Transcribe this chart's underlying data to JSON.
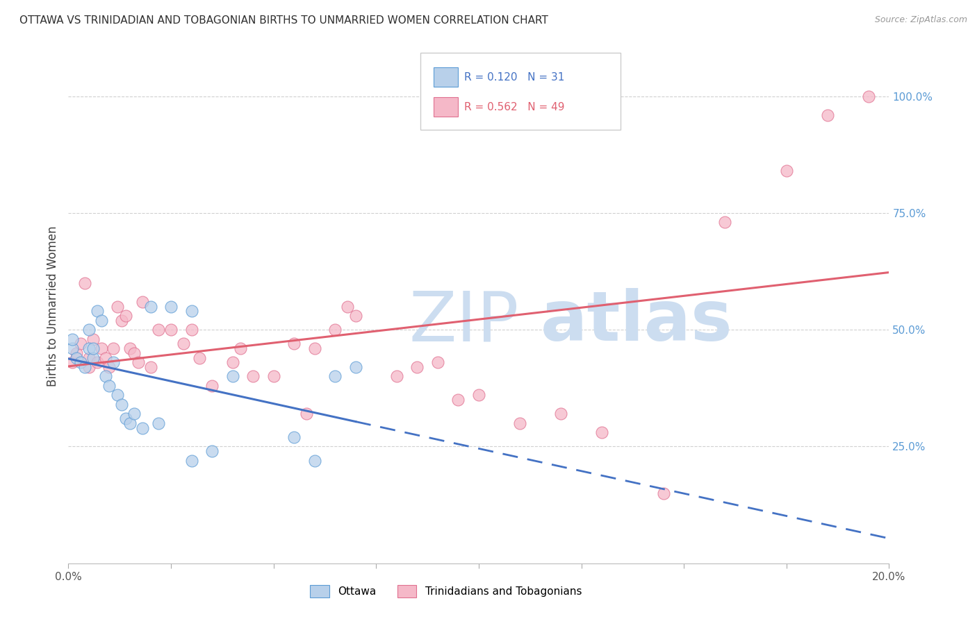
{
  "title": "OTTAWA VS TRINIDADIAN AND TOBAGONIAN BIRTHS TO UNMARRIED WOMEN CORRELATION CHART",
  "source": "Source: ZipAtlas.com",
  "ylabel": "Births to Unmarried Women",
  "right_yticklabels": [
    "25.0%",
    "50.0%",
    "75.0%",
    "100.0%"
  ],
  "right_yticks": [
    0.25,
    0.5,
    0.75,
    1.0
  ],
  "legend_ottawa": "Ottawa",
  "legend_tnt": "Trinidadians and Tobagonians",
  "R_ottawa": 0.12,
  "N_ottawa": 31,
  "R_tnt": 0.562,
  "N_tnt": 49,
  "color_ottawa_fill": "#b8d0ea",
  "color_ottawa_edge": "#5b9bd5",
  "color_tnt_fill": "#f5b8c8",
  "color_tnt_edge": "#e07090",
  "color_line_ottawa": "#4472c4",
  "color_line_tnt": "#e06070",
  "color_right_axis": "#5b9bd5",
  "color_title": "#303030",
  "color_source": "#999999",
  "color_grid": "#d0d0d0",
  "xmin": 0.0,
  "xmax": 0.2,
  "ymin": 0.0,
  "ymax": 1.1,
  "ottawa_x": [
    0.001,
    0.001,
    0.002,
    0.003,
    0.004,
    0.005,
    0.005,
    0.006,
    0.006,
    0.007,
    0.008,
    0.009,
    0.01,
    0.011,
    0.012,
    0.013,
    0.014,
    0.02,
    0.025,
    0.03,
    0.04,
    0.055,
    0.06,
    0.065,
    0.07,
    0.015,
    0.016,
    0.018,
    0.022,
    0.03,
    0.035
  ],
  "ottawa_y": [
    0.46,
    0.48,
    0.44,
    0.43,
    0.42,
    0.5,
    0.46,
    0.44,
    0.46,
    0.54,
    0.52,
    0.4,
    0.38,
    0.43,
    0.36,
    0.34,
    0.31,
    0.55,
    0.55,
    0.54,
    0.4,
    0.27,
    0.22,
    0.4,
    0.42,
    0.3,
    0.32,
    0.29,
    0.3,
    0.22,
    0.24
  ],
  "tnt_x": [
    0.001,
    0.002,
    0.003,
    0.004,
    0.005,
    0.005,
    0.006,
    0.007,
    0.008,
    0.009,
    0.01,
    0.011,
    0.012,
    0.013,
    0.014,
    0.015,
    0.016,
    0.017,
    0.018,
    0.02,
    0.022,
    0.025,
    0.028,
    0.03,
    0.032,
    0.035,
    0.04,
    0.042,
    0.045,
    0.05,
    0.055,
    0.058,
    0.06,
    0.065,
    0.068,
    0.07,
    0.08,
    0.085,
    0.09,
    0.095,
    0.1,
    0.11,
    0.12,
    0.13,
    0.145,
    0.16,
    0.175,
    0.185,
    0.195
  ],
  "tnt_y": [
    0.43,
    0.45,
    0.47,
    0.6,
    0.42,
    0.44,
    0.48,
    0.43,
    0.46,
    0.44,
    0.42,
    0.46,
    0.55,
    0.52,
    0.53,
    0.46,
    0.45,
    0.43,
    0.56,
    0.42,
    0.5,
    0.5,
    0.47,
    0.5,
    0.44,
    0.38,
    0.43,
    0.46,
    0.4,
    0.4,
    0.47,
    0.32,
    0.46,
    0.5,
    0.55,
    0.53,
    0.4,
    0.42,
    0.43,
    0.35,
    0.36,
    0.3,
    0.32,
    0.28,
    0.15,
    0.73,
    0.84,
    0.96,
    1.0
  ],
  "watermark_zip_color": "#ccddf0",
  "watermark_atlas_color": "#ccddf0"
}
